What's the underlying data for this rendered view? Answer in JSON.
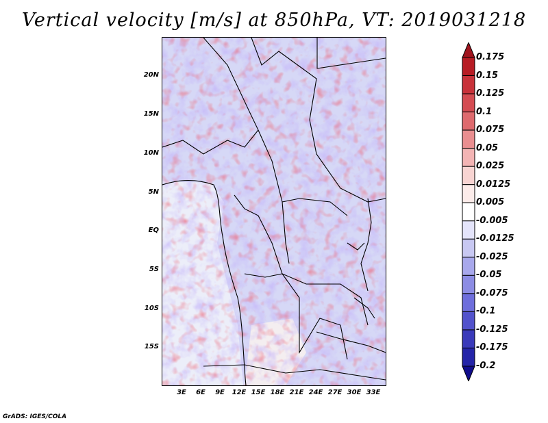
{
  "title": "Vertical velocity [m/s] at 850hPa, VT: 2019031218",
  "footer": "GrADS: IGES/COLA",
  "map": {
    "lat_labels": [
      "20N",
      "15N",
      "10N",
      "5N",
      "EQ",
      "5S",
      "10S",
      "15S"
    ],
    "lat_values": [
      20,
      15,
      10,
      5,
      0,
      -5,
      -10,
      -15
    ],
    "lon_labels": [
      "3E",
      "6E",
      "9E",
      "12E",
      "15E",
      "18E",
      "21E",
      "24E",
      "27E",
      "30E",
      "33E"
    ],
    "lon_values": [
      3,
      6,
      9,
      12,
      15,
      18,
      21,
      24,
      27,
      30,
      33
    ],
    "lon_range": [
      0,
      35
    ],
    "lat_range": [
      -20,
      25
    ]
  },
  "colorbar": {
    "labels": [
      "0.175",
      "0.15",
      "0.125",
      "0.1",
      "0.075",
      "0.05",
      "0.025",
      "0.0125",
      "0.005",
      "-0.005",
      "-0.0125",
      "-0.025",
      "-0.05",
      "-0.075",
      "-0.1",
      "-0.125",
      "-0.175",
      "-0.2"
    ],
    "colors": [
      "#a0141e",
      "#b71c24",
      "#c8323a",
      "#d44c52",
      "#de6a6e",
      "#e98e90",
      "#f3b4b4",
      "#f8d4d2",
      "#fcecea",
      "#ffffff",
      "#e4e4fa",
      "#c8c8f2",
      "#a8a8ec",
      "#8c8ce4",
      "#6e6edc",
      "#5252cc",
      "#3a3aba",
      "#2424a8",
      "#100c8c"
    ]
  }
}
